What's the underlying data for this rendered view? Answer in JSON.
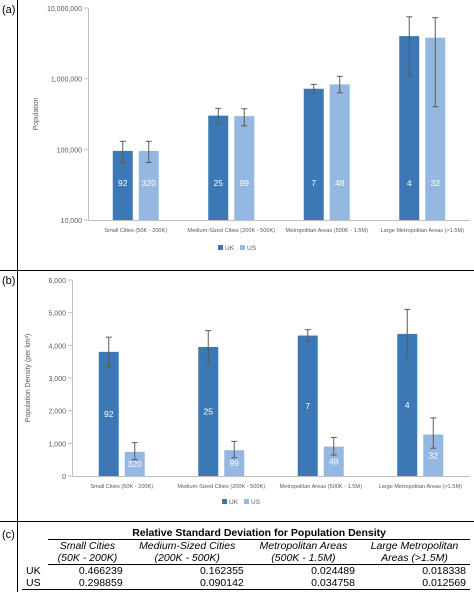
{
  "panels": {
    "a_label": "(a)",
    "b_label": "(b)",
    "c_label": "(c)"
  },
  "colors": {
    "uk": "#3c78b5",
    "us": "#94b8e1"
  },
  "chart_data": [
    {
      "type": "bar",
      "panel": "(a)",
      "ylabel": "Population",
      "yscale": "log",
      "ylim": [
        10000,
        10000000
      ],
      "yticks": [
        "10,000",
        "100,000",
        "1,000,000",
        "10,000,000"
      ],
      "categories": [
        "Small Cities (50K - 200K)",
        "Medium-Sized Cities (200K - 500K)",
        "Metropolitan Areas (500K - 1.5M)",
        "Large Metropolitan Areas (>1.5M)"
      ],
      "series": [
        {
          "name": "UK",
          "values": [
            95000,
            300000,
            720000,
            4000000
          ],
          "err_low": [
            65000,
            230000,
            620000,
            1100000
          ],
          "err_high": [
            130000,
            380000,
            830000,
            7500000
          ],
          "labels": [
            "92",
            "25",
            "7",
            "4"
          ]
        },
        {
          "name": "US",
          "values": [
            95000,
            295000,
            830000,
            3800000
          ],
          "err_low": [
            65000,
            215000,
            630000,
            400000
          ],
          "err_high": [
            130000,
            375000,
            1080000,
            7300000
          ],
          "labels": [
            "320",
            "99",
            "48",
            "32"
          ]
        }
      ],
      "legend": "bottom",
      "grid": false
    },
    {
      "type": "bar",
      "panel": "(b)",
      "ylabel": "Population Density (per km²)",
      "yscale": "linear",
      "ylim": [
        0,
        6000
      ],
      "yticks": [
        "0",
        "1,000",
        "2,000",
        "3,000",
        "4,000",
        "5,000",
        "6,000"
      ],
      "categories": [
        "Small Cities (50K - 200K)",
        "Medium-Sized Cities (200K - 500K)",
        "Metropolitan Areas (500K - 1.5M)",
        "Large Metropolitan Areas (>1.5M)"
      ],
      "series": [
        {
          "name": "UK",
          "values": [
            3800,
            3950,
            4300,
            4350
          ],
          "err_low": [
            3350,
            3450,
            4130,
            3600
          ],
          "err_high": [
            4250,
            4450,
            4480,
            5100
          ],
          "labels": [
            "92",
            "25",
            "7",
            "4"
          ]
        },
        {
          "name": "US",
          "values": [
            740,
            790,
            900,
            1270
          ],
          "err_low": [
            500,
            560,
            640,
            850
          ],
          "err_high": [
            1020,
            1060,
            1180,
            1780
          ],
          "labels": [
            "320",
            "99",
            "48",
            "32"
          ]
        }
      ],
      "legend": "bottom",
      "grid": false
    }
  ],
  "table": {
    "title": "Relative Standard Deviation for Population Density",
    "columns": [
      [
        "Small Cities",
        "(50K - 200K)"
      ],
      [
        "Medium-Sized Cities",
        "(200K - 500K)"
      ],
      [
        "Metropolitan Areas",
        "(500K - 1.5M)"
      ],
      [
        "Large Metropolitan",
        "Areas (>1.5M)"
      ]
    ],
    "rows": [
      {
        "label": "UK",
        "values": [
          "0.466239",
          "0.162355",
          "0.024489",
          "0.018338"
        ]
      },
      {
        "label": "US",
        "values": [
          "0.298859",
          "0.090142",
          "0.034758",
          "0.012569"
        ]
      }
    ]
  }
}
